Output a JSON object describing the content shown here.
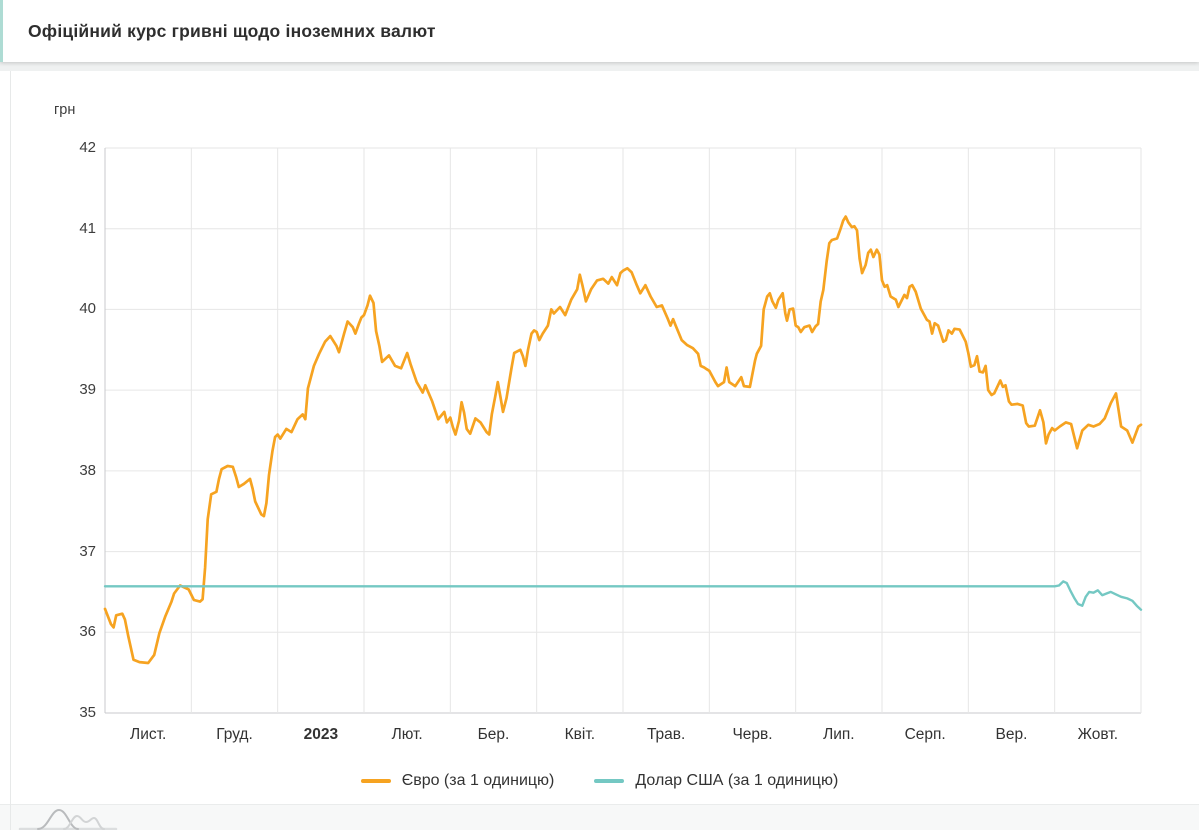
{
  "header": {
    "title": "Офіційний курс гривні щодо іноземних валют"
  },
  "chart_data": {
    "type": "line",
    "title": "Офіційний курс гривні щодо іноземних валют",
    "y_unit": "грн",
    "ylim": [
      35,
      42
    ],
    "y_ticks": [
      35,
      36,
      37,
      38,
      39,
      40,
      41,
      42
    ],
    "x_labels": [
      "Лист.",
      "Груд.",
      "2023",
      "Лют.",
      "Бер.",
      "Квіт.",
      "Трав.",
      "Черв.",
      "Лип.",
      "Серп.",
      "Вер.",
      "Жовт."
    ],
    "x_labels_bold": [
      "2023"
    ],
    "x_units": "months from 1 Nov 2022 (0 = Nov 1, 12 = Oct 31, 2023)",
    "grid": true,
    "legend_position": "bottom",
    "colors": {
      "grid": "#e6e6e6",
      "axis": "#c8cacc",
      "tick_text": "#3d3d3d"
    },
    "series": [
      {
        "name": "Євро (за 1 одиницю)",
        "color": "#F6A321",
        "points": [
          [
            0,
            36.29
          ],
          [
            0.07,
            36.1
          ],
          [
            0.1,
            36.06
          ],
          [
            0.13,
            36.21
          ],
          [
            0.2,
            36.23
          ],
          [
            0.23,
            36.16
          ],
          [
            0.27,
            35.95
          ],
          [
            0.33,
            35.66
          ],
          [
            0.4,
            35.63
          ],
          [
            0.5,
            35.62
          ],
          [
            0.57,
            35.72
          ],
          [
            0.63,
            35.99
          ],
          [
            0.7,
            36.2
          ],
          [
            0.77,
            36.38
          ],
          [
            0.8,
            36.48
          ],
          [
            0.87,
            36.58
          ],
          [
            0.93,
            36.55
          ],
          [
            0.97,
            36.53
          ],
          [
            1.03,
            36.4
          ],
          [
            1.1,
            36.38
          ],
          [
            1.13,
            36.41
          ],
          [
            1.16,
            36.8
          ],
          [
            1.19,
            37.4
          ],
          [
            1.23,
            37.71
          ],
          [
            1.29,
            37.74
          ],
          [
            1.32,
            37.9
          ],
          [
            1.35,
            38.02
          ],
          [
            1.42,
            38.06
          ],
          [
            1.48,
            38.05
          ],
          [
            1.52,
            37.92
          ],
          [
            1.55,
            37.8
          ],
          [
            1.61,
            37.84
          ],
          [
            1.68,
            37.9
          ],
          [
            1.71,
            37.78
          ],
          [
            1.74,
            37.62
          ],
          [
            1.81,
            37.46
          ],
          [
            1.84,
            37.44
          ],
          [
            1.87,
            37.6
          ],
          [
            1.9,
            37.95
          ],
          [
            1.94,
            38.25
          ],
          [
            1.97,
            38.42
          ],
          [
            2.0,
            38.45
          ],
          [
            2.03,
            38.4
          ],
          [
            2.1,
            38.52
          ],
          [
            2.16,
            38.48
          ],
          [
            2.23,
            38.64
          ],
          [
            2.29,
            38.7
          ],
          [
            2.32,
            38.64
          ],
          [
            2.35,
            39.02
          ],
          [
            2.42,
            39.3
          ],
          [
            2.48,
            39.45
          ],
          [
            2.55,
            39.6
          ],
          [
            2.61,
            39.67
          ],
          [
            2.68,
            39.55
          ],
          [
            2.71,
            39.47
          ],
          [
            2.77,
            39.7
          ],
          [
            2.81,
            39.85
          ],
          [
            2.87,
            39.78
          ],
          [
            2.9,
            39.7
          ],
          [
            2.94,
            39.82
          ],
          [
            2.97,
            39.9
          ],
          [
            3.0,
            39.93
          ],
          [
            3.04,
            40.05
          ],
          [
            3.07,
            40.17
          ],
          [
            3.11,
            40.08
          ],
          [
            3.14,
            39.73
          ],
          [
            3.18,
            39.54
          ],
          [
            3.21,
            39.35
          ],
          [
            3.29,
            39.43
          ],
          [
            3.36,
            39.3
          ],
          [
            3.43,
            39.27
          ],
          [
            3.5,
            39.46
          ],
          [
            3.54,
            39.32
          ],
          [
            3.61,
            39.1
          ],
          [
            3.68,
            38.97
          ],
          [
            3.71,
            39.06
          ],
          [
            3.79,
            38.86
          ],
          [
            3.86,
            38.64
          ],
          [
            3.93,
            38.73
          ],
          [
            3.96,
            38.6
          ],
          [
            4.0,
            38.66
          ],
          [
            4.03,
            38.54
          ],
          [
            4.06,
            38.45
          ],
          [
            4.1,
            38.62
          ],
          [
            4.13,
            38.85
          ],
          [
            4.16,
            38.72
          ],
          [
            4.19,
            38.52
          ],
          [
            4.23,
            38.46
          ],
          [
            4.29,
            38.65
          ],
          [
            4.35,
            38.6
          ],
          [
            4.42,
            38.48
          ],
          [
            4.45,
            38.45
          ],
          [
            4.48,
            38.7
          ],
          [
            4.52,
            38.92
          ],
          [
            4.55,
            39.1
          ],
          [
            4.58,
            38.92
          ],
          [
            4.61,
            38.73
          ],
          [
            4.65,
            38.9
          ],
          [
            4.71,
            39.28
          ],
          [
            4.74,
            39.46
          ],
          [
            4.81,
            39.5
          ],
          [
            4.84,
            39.42
          ],
          [
            4.87,
            39.3
          ],
          [
            4.9,
            39.5
          ],
          [
            4.94,
            39.7
          ],
          [
            4.97,
            39.74
          ],
          [
            5.0,
            39.72
          ],
          [
            5.03,
            39.62
          ],
          [
            5.07,
            39.7
          ],
          [
            5.13,
            39.8
          ],
          [
            5.17,
            40.0
          ],
          [
            5.2,
            39.95
          ],
          [
            5.27,
            40.03
          ],
          [
            5.33,
            39.93
          ],
          [
            5.4,
            40.12
          ],
          [
            5.47,
            40.25
          ],
          [
            5.5,
            40.43
          ],
          [
            5.53,
            40.3
          ],
          [
            5.57,
            40.1
          ],
          [
            5.63,
            40.25
          ],
          [
            5.7,
            40.36
          ],
          [
            5.77,
            40.38
          ],
          [
            5.83,
            40.32
          ],
          [
            5.87,
            40.4
          ],
          [
            5.93,
            40.3
          ],
          [
            5.97,
            40.45
          ],
          [
            6.0,
            40.48
          ],
          [
            6.05,
            40.51
          ],
          [
            6.1,
            40.46
          ],
          [
            6.16,
            40.3
          ],
          [
            6.2,
            40.2
          ],
          [
            6.26,
            40.3
          ],
          [
            6.32,
            40.16
          ],
          [
            6.39,
            40.03
          ],
          [
            6.45,
            40.05
          ],
          [
            6.52,
            39.88
          ],
          [
            6.55,
            39.8
          ],
          [
            6.58,
            39.88
          ],
          [
            6.61,
            39.8
          ],
          [
            6.68,
            39.62
          ],
          [
            6.74,
            39.56
          ],
          [
            6.81,
            39.52
          ],
          [
            6.87,
            39.45
          ],
          [
            6.9,
            39.3
          ],
          [
            6.94,
            39.28
          ],
          [
            6.97,
            39.26
          ],
          [
            7.0,
            39.24
          ],
          [
            7.03,
            39.18
          ],
          [
            7.07,
            39.1
          ],
          [
            7.1,
            39.05
          ],
          [
            7.17,
            39.1
          ],
          [
            7.2,
            39.28
          ],
          [
            7.23,
            39.1
          ],
          [
            7.3,
            39.05
          ],
          [
            7.37,
            39.16
          ],
          [
            7.4,
            39.05
          ],
          [
            7.47,
            39.04
          ],
          [
            7.53,
            39.37
          ],
          [
            7.55,
            39.45
          ],
          [
            7.6,
            39.55
          ],
          [
            7.63,
            40.0
          ],
          [
            7.67,
            40.16
          ],
          [
            7.7,
            40.2
          ],
          [
            7.73,
            40.1
          ],
          [
            7.77,
            40.02
          ],
          [
            7.8,
            40.12
          ],
          [
            7.85,
            40.2
          ],
          [
            7.88,
            39.95
          ],
          [
            7.9,
            39.86
          ],
          [
            7.93,
            40.0
          ],
          [
            7.97,
            40.01
          ],
          [
            8.0,
            39.8
          ],
          [
            8.03,
            39.78
          ],
          [
            8.06,
            39.72
          ],
          [
            8.1,
            39.78
          ],
          [
            8.16,
            39.8
          ],
          [
            8.19,
            39.72
          ],
          [
            8.23,
            39.79
          ],
          [
            8.26,
            39.82
          ],
          [
            8.29,
            40.1
          ],
          [
            8.32,
            40.24
          ],
          [
            8.36,
            40.6
          ],
          [
            8.39,
            40.82
          ],
          [
            8.42,
            40.86
          ],
          [
            8.48,
            40.88
          ],
          [
            8.52,
            41.0
          ],
          [
            8.55,
            41.1
          ],
          [
            8.58,
            41.15
          ],
          [
            8.61,
            41.08
          ],
          [
            8.65,
            41.02
          ],
          [
            8.68,
            41.03
          ],
          [
            8.71,
            40.98
          ],
          [
            8.74,
            40.63
          ],
          [
            8.77,
            40.45
          ],
          [
            8.81,
            40.55
          ],
          [
            8.84,
            40.7
          ],
          [
            8.87,
            40.74
          ],
          [
            8.9,
            40.65
          ],
          [
            8.94,
            40.74
          ],
          [
            8.97,
            40.68
          ],
          [
            9.0,
            40.36
          ],
          [
            9.03,
            40.28
          ],
          [
            9.06,
            40.3
          ],
          [
            9.1,
            40.16
          ],
          [
            9.16,
            40.12
          ],
          [
            9.19,
            40.03
          ],
          [
            9.26,
            40.18
          ],
          [
            9.29,
            40.14
          ],
          [
            9.32,
            40.28
          ],
          [
            9.35,
            40.3
          ],
          [
            9.39,
            40.22
          ],
          [
            9.45,
            40.01
          ],
          [
            9.52,
            39.87
          ],
          [
            9.55,
            39.85
          ],
          [
            9.58,
            39.7
          ],
          [
            9.61,
            39.83
          ],
          [
            9.65,
            39.8
          ],
          [
            9.71,
            39.6
          ],
          [
            9.74,
            39.62
          ],
          [
            9.77,
            39.74
          ],
          [
            9.81,
            39.7
          ],
          [
            9.84,
            39.76
          ],
          [
            9.9,
            39.75
          ],
          [
            9.97,
            39.6
          ],
          [
            10.0,
            39.46
          ],
          [
            10.03,
            39.29
          ],
          [
            10.07,
            39.31
          ],
          [
            10.1,
            39.42
          ],
          [
            10.13,
            39.23
          ],
          [
            10.17,
            39.22
          ],
          [
            10.2,
            39.3
          ],
          [
            10.23,
            39.0
          ],
          [
            10.27,
            38.94
          ],
          [
            10.3,
            38.96
          ],
          [
            10.37,
            39.12
          ],
          [
            10.4,
            39.04
          ],
          [
            10.43,
            39.06
          ],
          [
            10.47,
            38.86
          ],
          [
            10.5,
            38.82
          ],
          [
            10.57,
            38.83
          ],
          [
            10.63,
            38.81
          ],
          [
            10.67,
            38.59
          ],
          [
            10.7,
            38.55
          ],
          [
            10.77,
            38.56
          ],
          [
            10.83,
            38.75
          ],
          [
            10.87,
            38.6
          ],
          [
            10.9,
            38.34
          ],
          [
            10.93,
            38.45
          ],
          [
            10.97,
            38.53
          ],
          [
            11.0,
            38.5
          ],
          [
            11.06,
            38.55
          ],
          [
            11.13,
            38.6
          ],
          [
            11.19,
            38.58
          ],
          [
            11.26,
            38.28
          ],
          [
            11.32,
            38.5
          ],
          [
            11.39,
            38.57
          ],
          [
            11.45,
            38.55
          ],
          [
            11.52,
            38.58
          ],
          [
            11.58,
            38.65
          ],
          [
            11.65,
            38.84
          ],
          [
            11.71,
            38.96
          ],
          [
            11.77,
            38.55
          ],
          [
            11.84,
            38.5
          ],
          [
            11.9,
            38.35
          ],
          [
            11.97,
            38.55
          ],
          [
            12,
            38.57
          ]
        ]
      },
      {
        "name": "Долар США (за 1 одиницю)",
        "color": "#74C8C3",
        "points": [
          [
            0,
            36.57
          ],
          [
            3,
            36.57
          ],
          [
            6,
            36.57
          ],
          [
            9,
            36.57
          ],
          [
            11,
            36.57
          ],
          [
            11.05,
            36.58
          ],
          [
            11.1,
            36.63
          ],
          [
            11.14,
            36.61
          ],
          [
            11.18,
            36.52
          ],
          [
            11.23,
            36.42
          ],
          [
            11.27,
            36.35
          ],
          [
            11.32,
            36.33
          ],
          [
            11.36,
            36.44
          ],
          [
            11.4,
            36.5
          ],
          [
            11.45,
            36.49
          ],
          [
            11.5,
            36.52
          ],
          [
            11.55,
            36.46
          ],
          [
            11.6,
            36.48
          ],
          [
            11.65,
            36.5
          ],
          [
            11.71,
            36.47
          ],
          [
            11.77,
            36.44
          ],
          [
            11.84,
            36.42
          ],
          [
            11.9,
            36.39
          ],
          [
            11.95,
            36.33
          ],
          [
            12,
            36.28
          ]
        ]
      }
    ]
  }
}
